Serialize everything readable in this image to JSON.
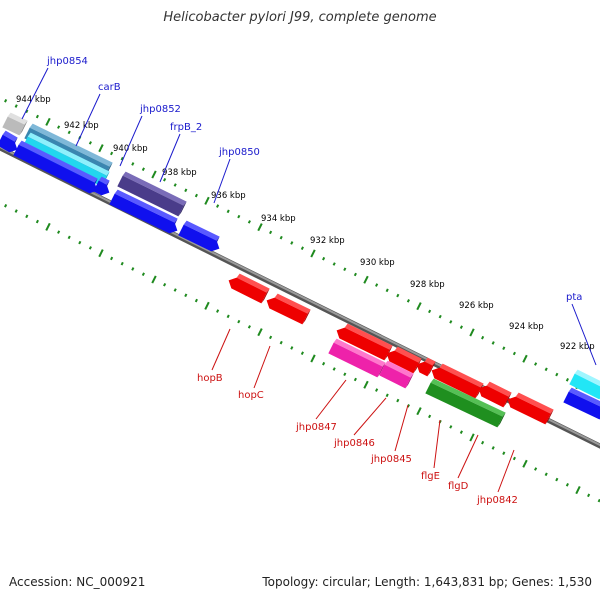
{
  "title": "Helicobacter pylori J99, complete genome",
  "footer": {
    "accession": "Accession: NC_000921",
    "summary": "Topology: circular; Length: 1,643,831 bp; Genes: 1,530"
  },
  "colors": {
    "backbone": "#777777",
    "ticks": "#1f8a1f",
    "label_forward": "#1a1acc",
    "label_reverse": "#cc1111"
  },
  "scale_labels": [
    "944 kbp",
    "942 kbp",
    "940 kbp",
    "938 kbp",
    "936 kbp",
    "934 kbp",
    "932 kbp",
    "930 kbp",
    "928 kbp",
    "926 kbp",
    "924 kbp",
    "922 kbp"
  ],
  "forward_genes": [
    "jhp0854",
    "carB",
    "jhp0852",
    "frpB_2",
    "jhp0850",
    "pta"
  ],
  "reverse_genes": [
    "hopB",
    "hopC",
    "jhp0847",
    "jhp0846",
    "jhp0845",
    "flgE",
    "flgD",
    "jhp0842"
  ]
}
